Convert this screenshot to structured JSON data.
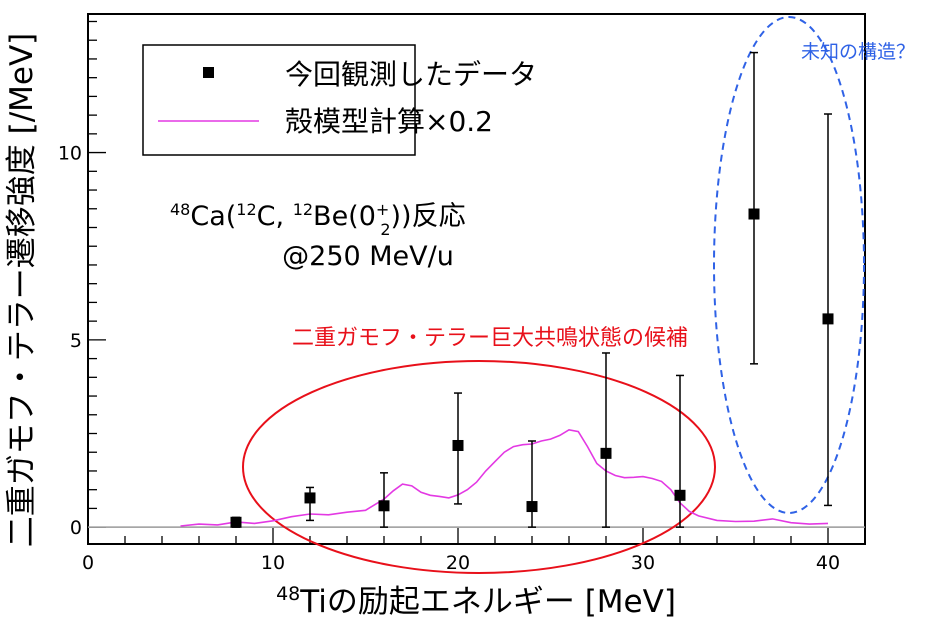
{
  "chart_data": {
    "type": "scatter",
    "xlabel_sup": "48",
    "xlabel_main": "Tiの励起エネルギー [MeV]",
    "ylabel": "二重ガモフ・テラー遷移強度 [/MeV]",
    "xlim": [
      0,
      42
    ],
    "ylim": [
      -0.45,
      13.7
    ],
    "x_ticks": [
      0,
      10,
      20,
      30,
      40
    ],
    "y_ticks": [
      0,
      5,
      10
    ],
    "x_tick_labels": [
      "0",
      "10",
      "20",
      "30",
      "40"
    ],
    "y_tick_labels": [
      "0",
      "5",
      "10"
    ],
    "zero_line": true,
    "grid": false,
    "legend_position": "top-left",
    "series": [
      {
        "name": "今回観測したデータ",
        "type": "scatter",
        "color": "#000000",
        "marker": "square",
        "points": [
          {
            "x": 8,
            "y": 0.13,
            "yerr_low": 0.13,
            "yerr_high": 0.13
          },
          {
            "x": 12,
            "y": 0.78,
            "yerr_low": 0.6,
            "yerr_high": 0.28
          },
          {
            "x": 16,
            "y": 0.57,
            "yerr_low": 0.57,
            "yerr_high": 0.88
          },
          {
            "x": 20,
            "y": 2.18,
            "yerr_low": 1.56,
            "yerr_high": 1.4
          },
          {
            "x": 24,
            "y": 0.55,
            "yerr_low": 0.55,
            "yerr_high": 1.75
          },
          {
            "x": 28,
            "y": 1.97,
            "yerr_low": 1.97,
            "yerr_high": 2.68
          },
          {
            "x": 32,
            "y": 0.85,
            "yerr_low": 0.85,
            "yerr_high": 3.2
          },
          {
            "x": 36,
            "y": 8.36,
            "yerr_low": 4.0,
            "yerr_high": 4.31
          },
          {
            "x": 40,
            "y": 5.56,
            "yerr_low": 4.98,
            "yerr_high": 5.47
          }
        ]
      },
      {
        "name": "殻模型計算×0.2",
        "type": "line",
        "color": "#e339e3",
        "x": [
          5.0,
          6.0,
          7.0,
          8.0,
          9.0,
          10.0,
          11.0,
          12.0,
          13.0,
          14.0,
          15.0,
          16.0,
          16.5,
          17.0,
          17.5,
          18.0,
          18.5,
          19.0,
          19.5,
          20.0,
          20.5,
          21.0,
          21.5,
          22.0,
          22.5,
          23.0,
          23.5,
          24.0,
          24.5,
          25.0,
          25.5,
          26.0,
          26.5,
          27.0,
          27.5,
          28.0,
          28.5,
          29.0,
          29.5,
          30.0,
          30.5,
          31.0,
          31.5,
          32.0,
          32.5,
          33.0,
          34.0,
          35.0,
          36.0,
          37.0,
          38.0,
          39.0,
          40.0
        ],
        "y": [
          0.03,
          0.08,
          0.06,
          0.14,
          0.1,
          0.17,
          0.28,
          0.35,
          0.33,
          0.4,
          0.45,
          0.75,
          0.97,
          1.15,
          1.1,
          0.93,
          0.85,
          0.82,
          0.78,
          0.86,
          1.0,
          1.2,
          1.5,
          1.75,
          2.0,
          2.15,
          2.2,
          2.22,
          2.3,
          2.35,
          2.45,
          2.6,
          2.55,
          2.15,
          1.7,
          1.5,
          1.38,
          1.32,
          1.33,
          1.35,
          1.3,
          1.22,
          1.0,
          0.65,
          0.42,
          0.3,
          0.18,
          0.15,
          0.16,
          0.22,
          0.12,
          0.08,
          0.1
        ]
      }
    ],
    "reaction": {
      "sup1": "48",
      "part1": "Ca(",
      "sup2": "12",
      "part2": "C, ",
      "sup3": "12",
      "part3": "Be(0",
      "sup4": "+",
      "sub4": "2",
      "part4": "))反応",
      "line2": "@250 MeV/u"
    },
    "annotations": {
      "red_label": "二重ガモフ・テラー巨大共鳴状態の候補",
      "blue_label": "未知の構造？",
      "red_color": "#e8101a",
      "blue_color": "#2f62e6"
    }
  }
}
